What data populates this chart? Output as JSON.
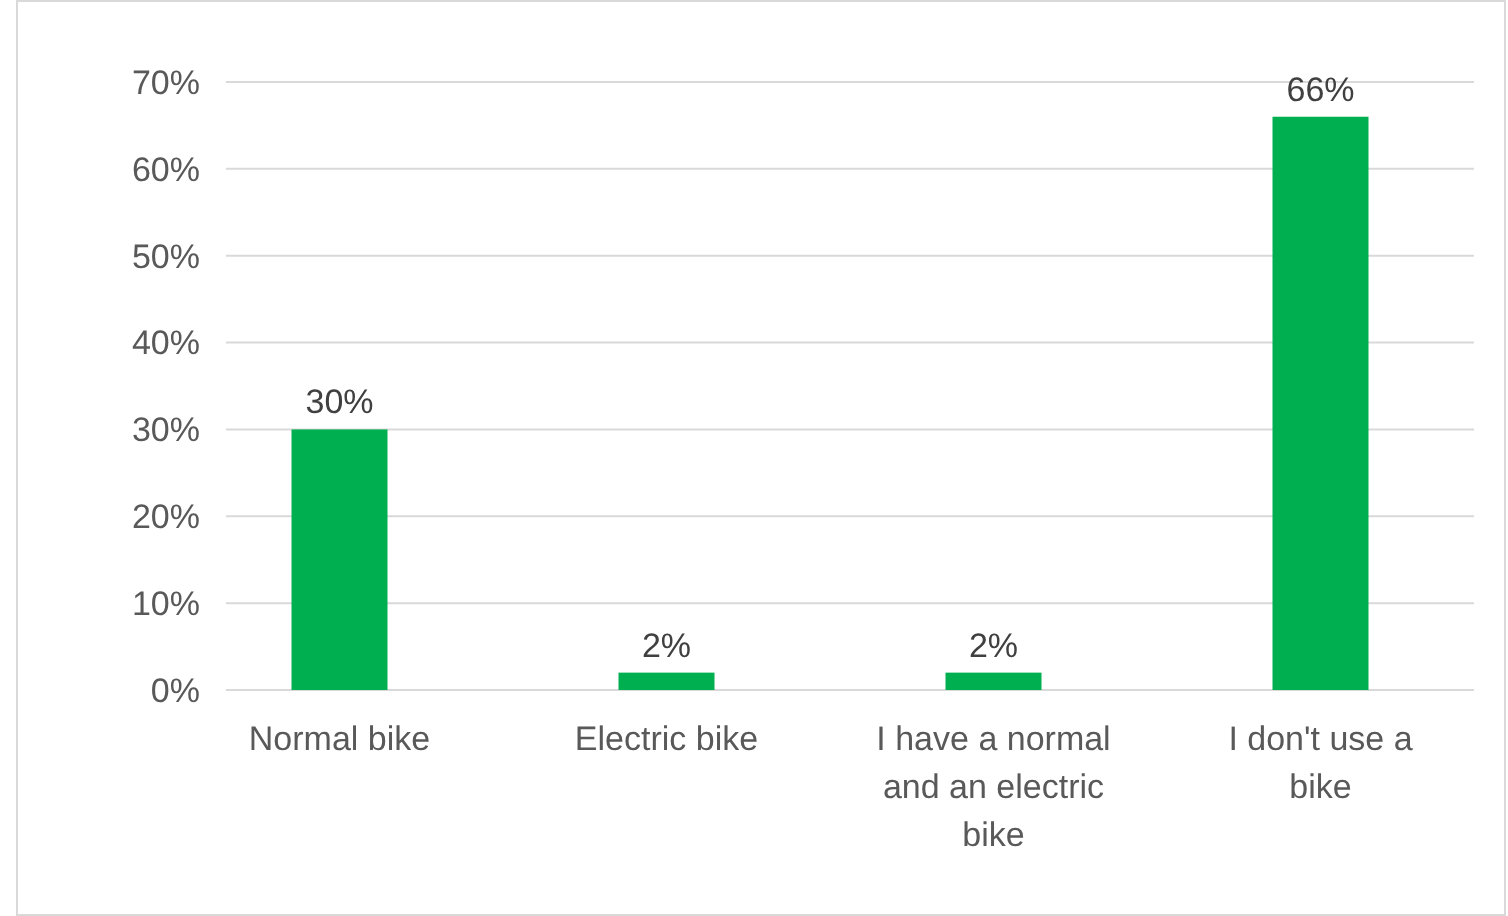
{
  "chart_data": {
    "type": "bar",
    "categories": [
      "Normal bike",
      "Electric bike",
      "I have a normal and an electric bike",
      "I don't use a bike"
    ],
    "values": [
      30,
      2,
      2,
      66
    ],
    "color": "#00b050",
    "value_labels": [
      "30%",
      "2%",
      "2%",
      "66%"
    ],
    "ylim": [
      0,
      70
    ],
    "yticks": [
      {
        "value": 0,
        "label": "0%"
      },
      {
        "value": 10,
        "label": "10%"
      },
      {
        "value": 20,
        "label": "20%"
      },
      {
        "value": 30,
        "label": "30%"
      },
      {
        "value": 40,
        "label": "40%"
      },
      {
        "value": 50,
        "label": "50%"
      },
      {
        "value": 60,
        "label": "60%"
      },
      {
        "value": 70,
        "label": "70%"
      }
    ],
    "grid": "y"
  }
}
